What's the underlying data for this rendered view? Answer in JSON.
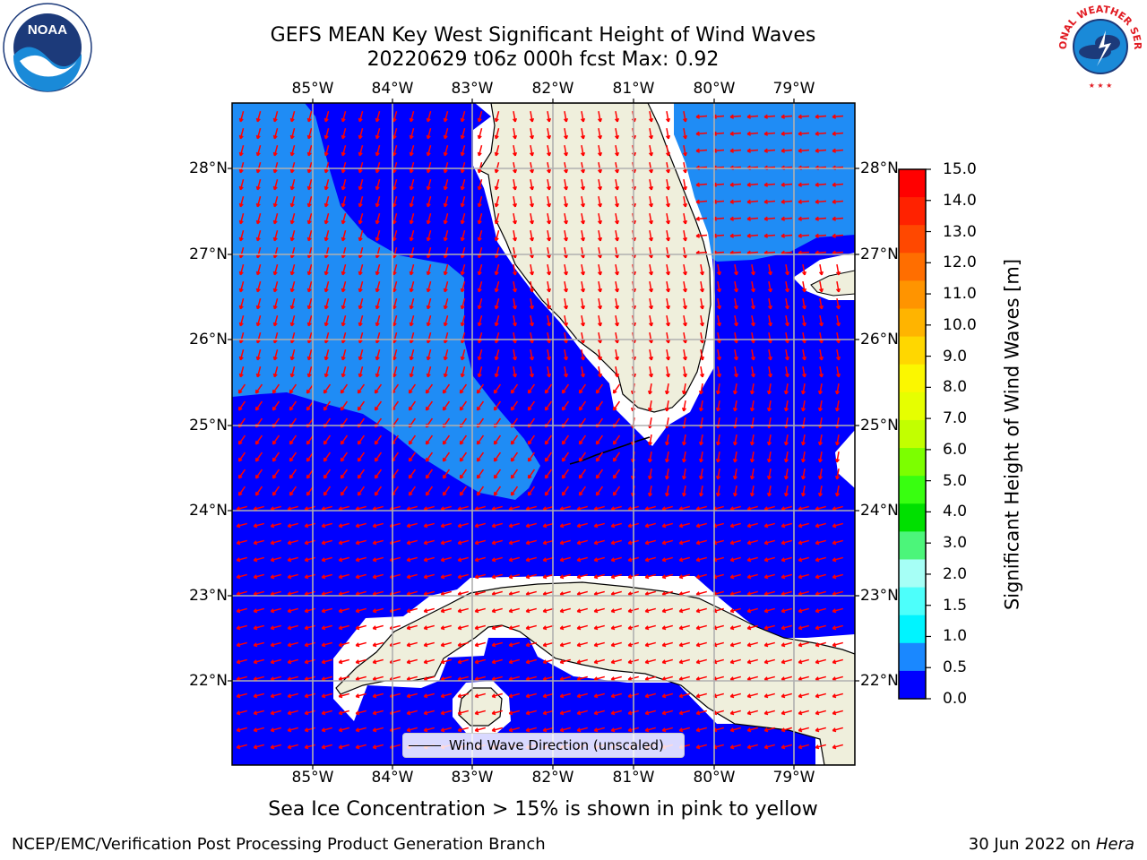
{
  "title": {
    "line1": "GEFS MEAN Key West Significant Height of Wind Waves",
    "line2": "20220629 t06z 000h fcst   Max: 0.92"
  },
  "map": {
    "lon_labels": [
      "85°W",
      "84°W",
      "83°W",
      "82°W",
      "81°W",
      "80°W",
      "79°W"
    ],
    "lat_labels": [
      "28°N",
      "27°N",
      "26°N",
      "25°N",
      "24°N",
      "23°N",
      "22°N"
    ],
    "legend": {
      "label": "Wind Wave Direction (unscaled)"
    },
    "colors": {
      "band_0_0_5": "#0000ff",
      "band_0_5_1_0": "#1f8cf5",
      "land": "#efefdc",
      "coast": "#000000",
      "grid": "#b0b0b0",
      "arrow": "#ff0000"
    }
  },
  "colorbar": {
    "ticks": [
      "15.0",
      "14.0",
      "13.0",
      "12.0",
      "11.0",
      "10.0",
      "9.0",
      "8.0",
      "7.0",
      "6.0",
      "5.0",
      "4.0",
      "3.0",
      "2.0",
      "1.5",
      "1.0",
      "0.5",
      "0.0"
    ],
    "colors_top_to_bottom": [
      "#ff0000",
      "#ff2200",
      "#ff4800",
      "#ff6e00",
      "#ff9400",
      "#ffb400",
      "#ffd700",
      "#fbf700",
      "#e6ff00",
      "#c2ff00",
      "#7cff00",
      "#38ff10",
      "#00e000",
      "#4cf57a",
      "#a6fff6",
      "#4dfffb",
      "#00f4ff",
      "#1a88ff",
      "#0000ff"
    ],
    "label": "Significant Height of Wind Waves [m]"
  },
  "ice_note": "Sea Ice Concentration > 15% is shown in pink to yellow",
  "footer": {
    "left": "NCEP/EMC/Verification Post Processing Product Generation Branch",
    "right_date": "30 Jun 2022 on",
    "right_host": "Hera"
  },
  "logos": {
    "left": {
      "text": "NOAA",
      "icon": "noaa-logo-icon"
    },
    "right": {
      "text": "NATIONAL WEATHER SERVICE",
      "icon": "nws-logo-icon"
    }
  }
}
